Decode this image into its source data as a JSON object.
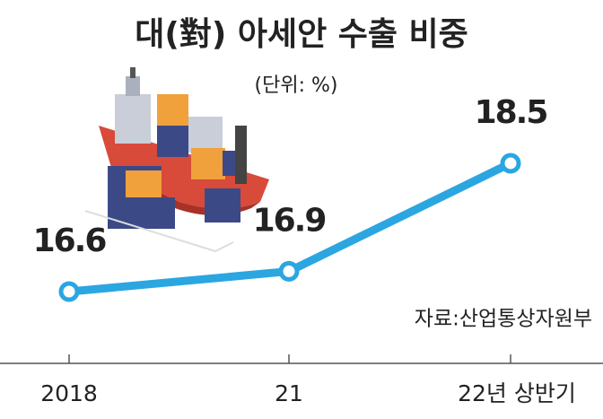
{
  "chart_data": {
    "type": "line",
    "title": "대(對) 아세안 수출 비중",
    "subtitle": "(단위: %)",
    "source": "자료:산업통상자원부",
    "categories": [
      "2018",
      "21",
      "22년 상반기"
    ],
    "values": [
      16.6,
      16.9,
      18.5
    ],
    "color": "#2ba6e1",
    "ylim": [
      15,
      20
    ]
  }
}
